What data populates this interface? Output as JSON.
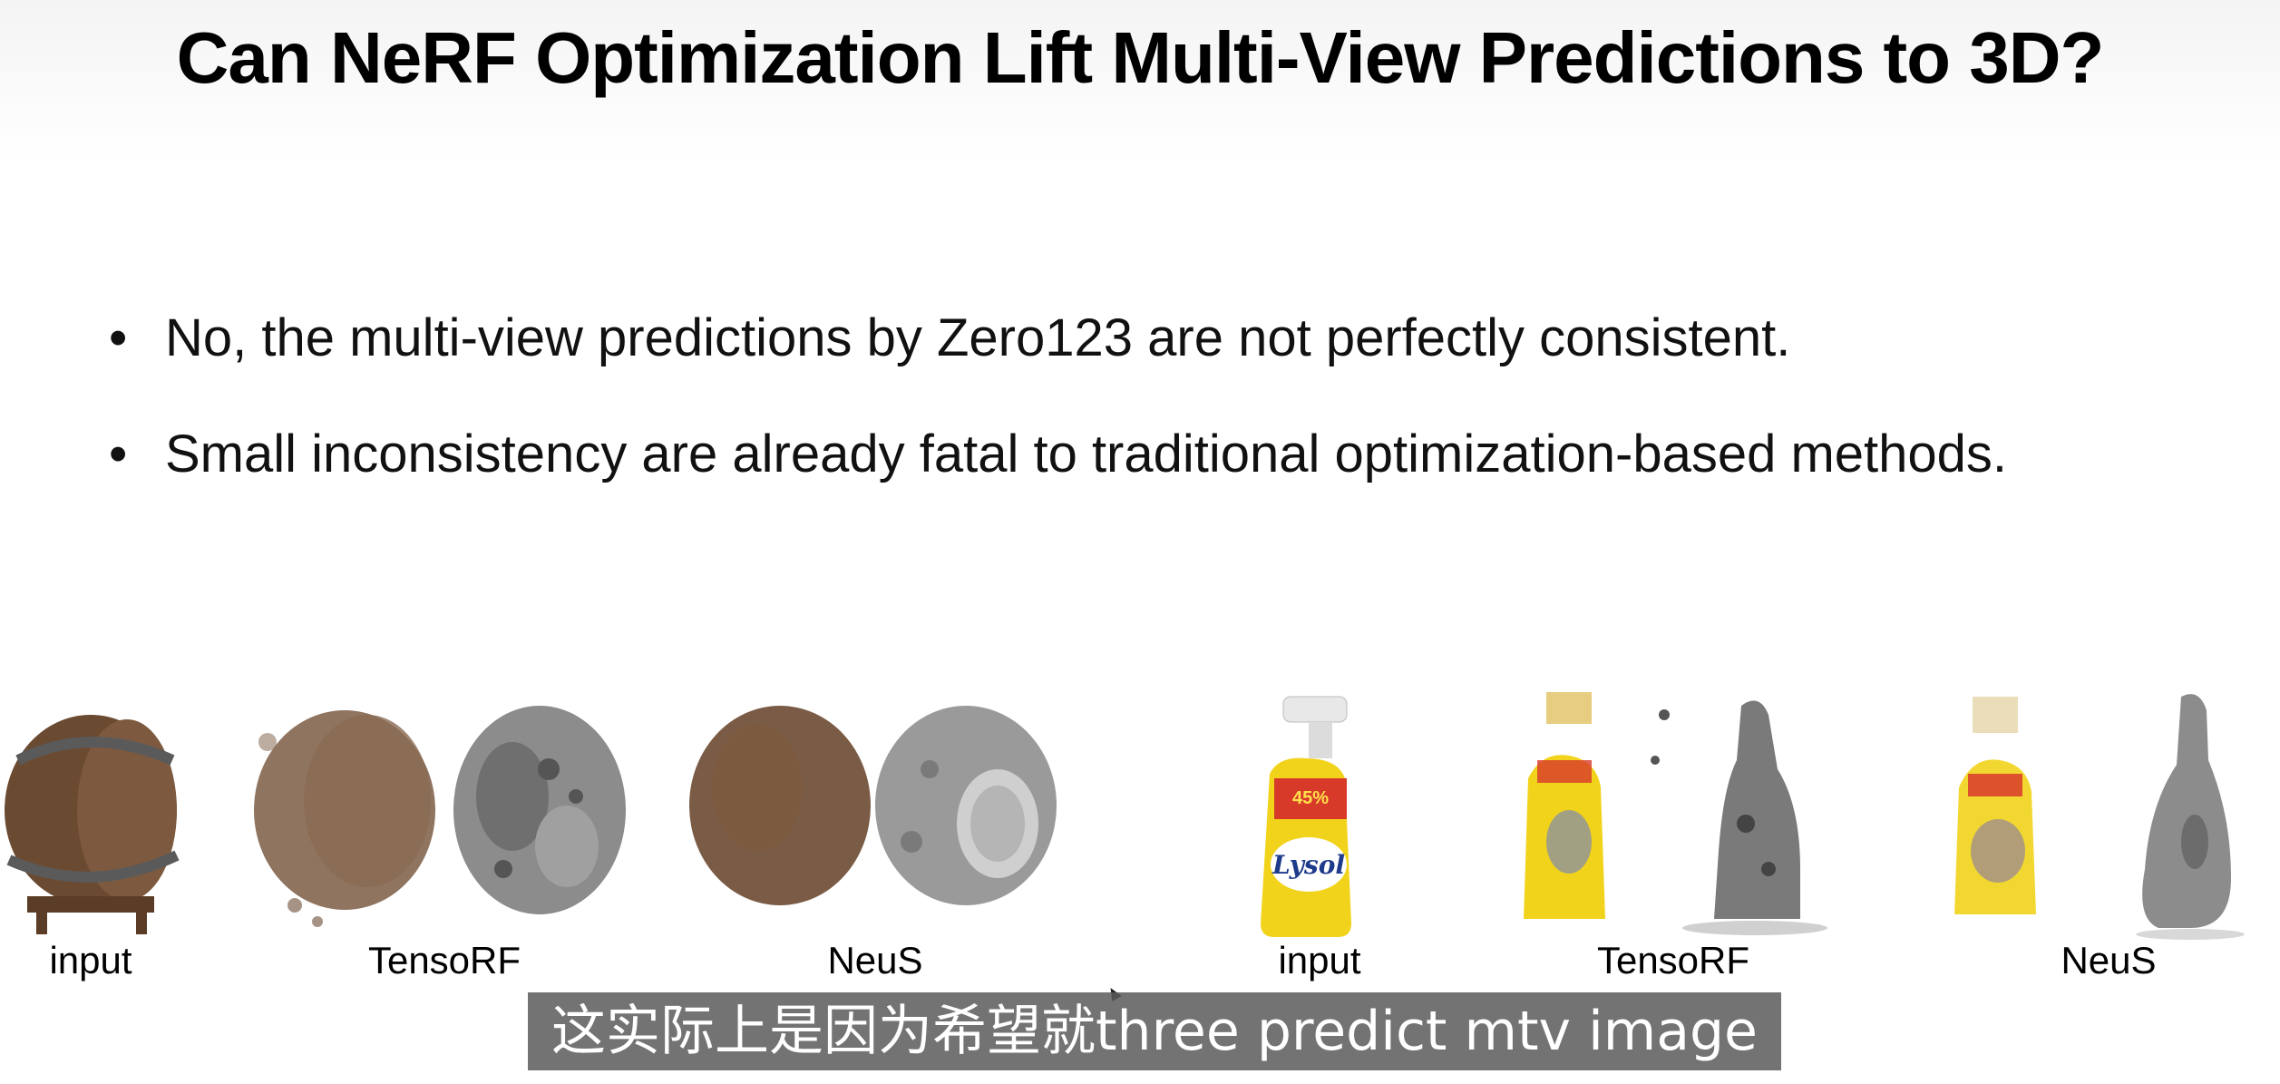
{
  "slide": {
    "title": "Can NeRF Optimization Lift Multi-View Predictions to 3D?",
    "bullet_symbol": "•",
    "bullets": [
      "No, the multi-view predictions by Zero123 are not perfectly consistent.",
      "Small inconsistency are already fatal to traditional optimization-based methods."
    ]
  },
  "figures": {
    "captions": [
      "input",
      "TensoRF",
      "NeuS",
      "input",
      "TensoRF",
      "NeuS"
    ],
    "bottle_label": "Lysol",
    "bottle_badge": "45%",
    "colors": {
      "barrel_wood": "#6b4a32",
      "barrel_hoop": "#5a5a5a",
      "mesh_gray": "#8c8c8c",
      "bottle_yellow": "#f2d31b",
      "bottle_red": "#d83a2a"
    }
  },
  "subtitle": {
    "text": "这实际上是因为希望就three predict mtv image"
  }
}
